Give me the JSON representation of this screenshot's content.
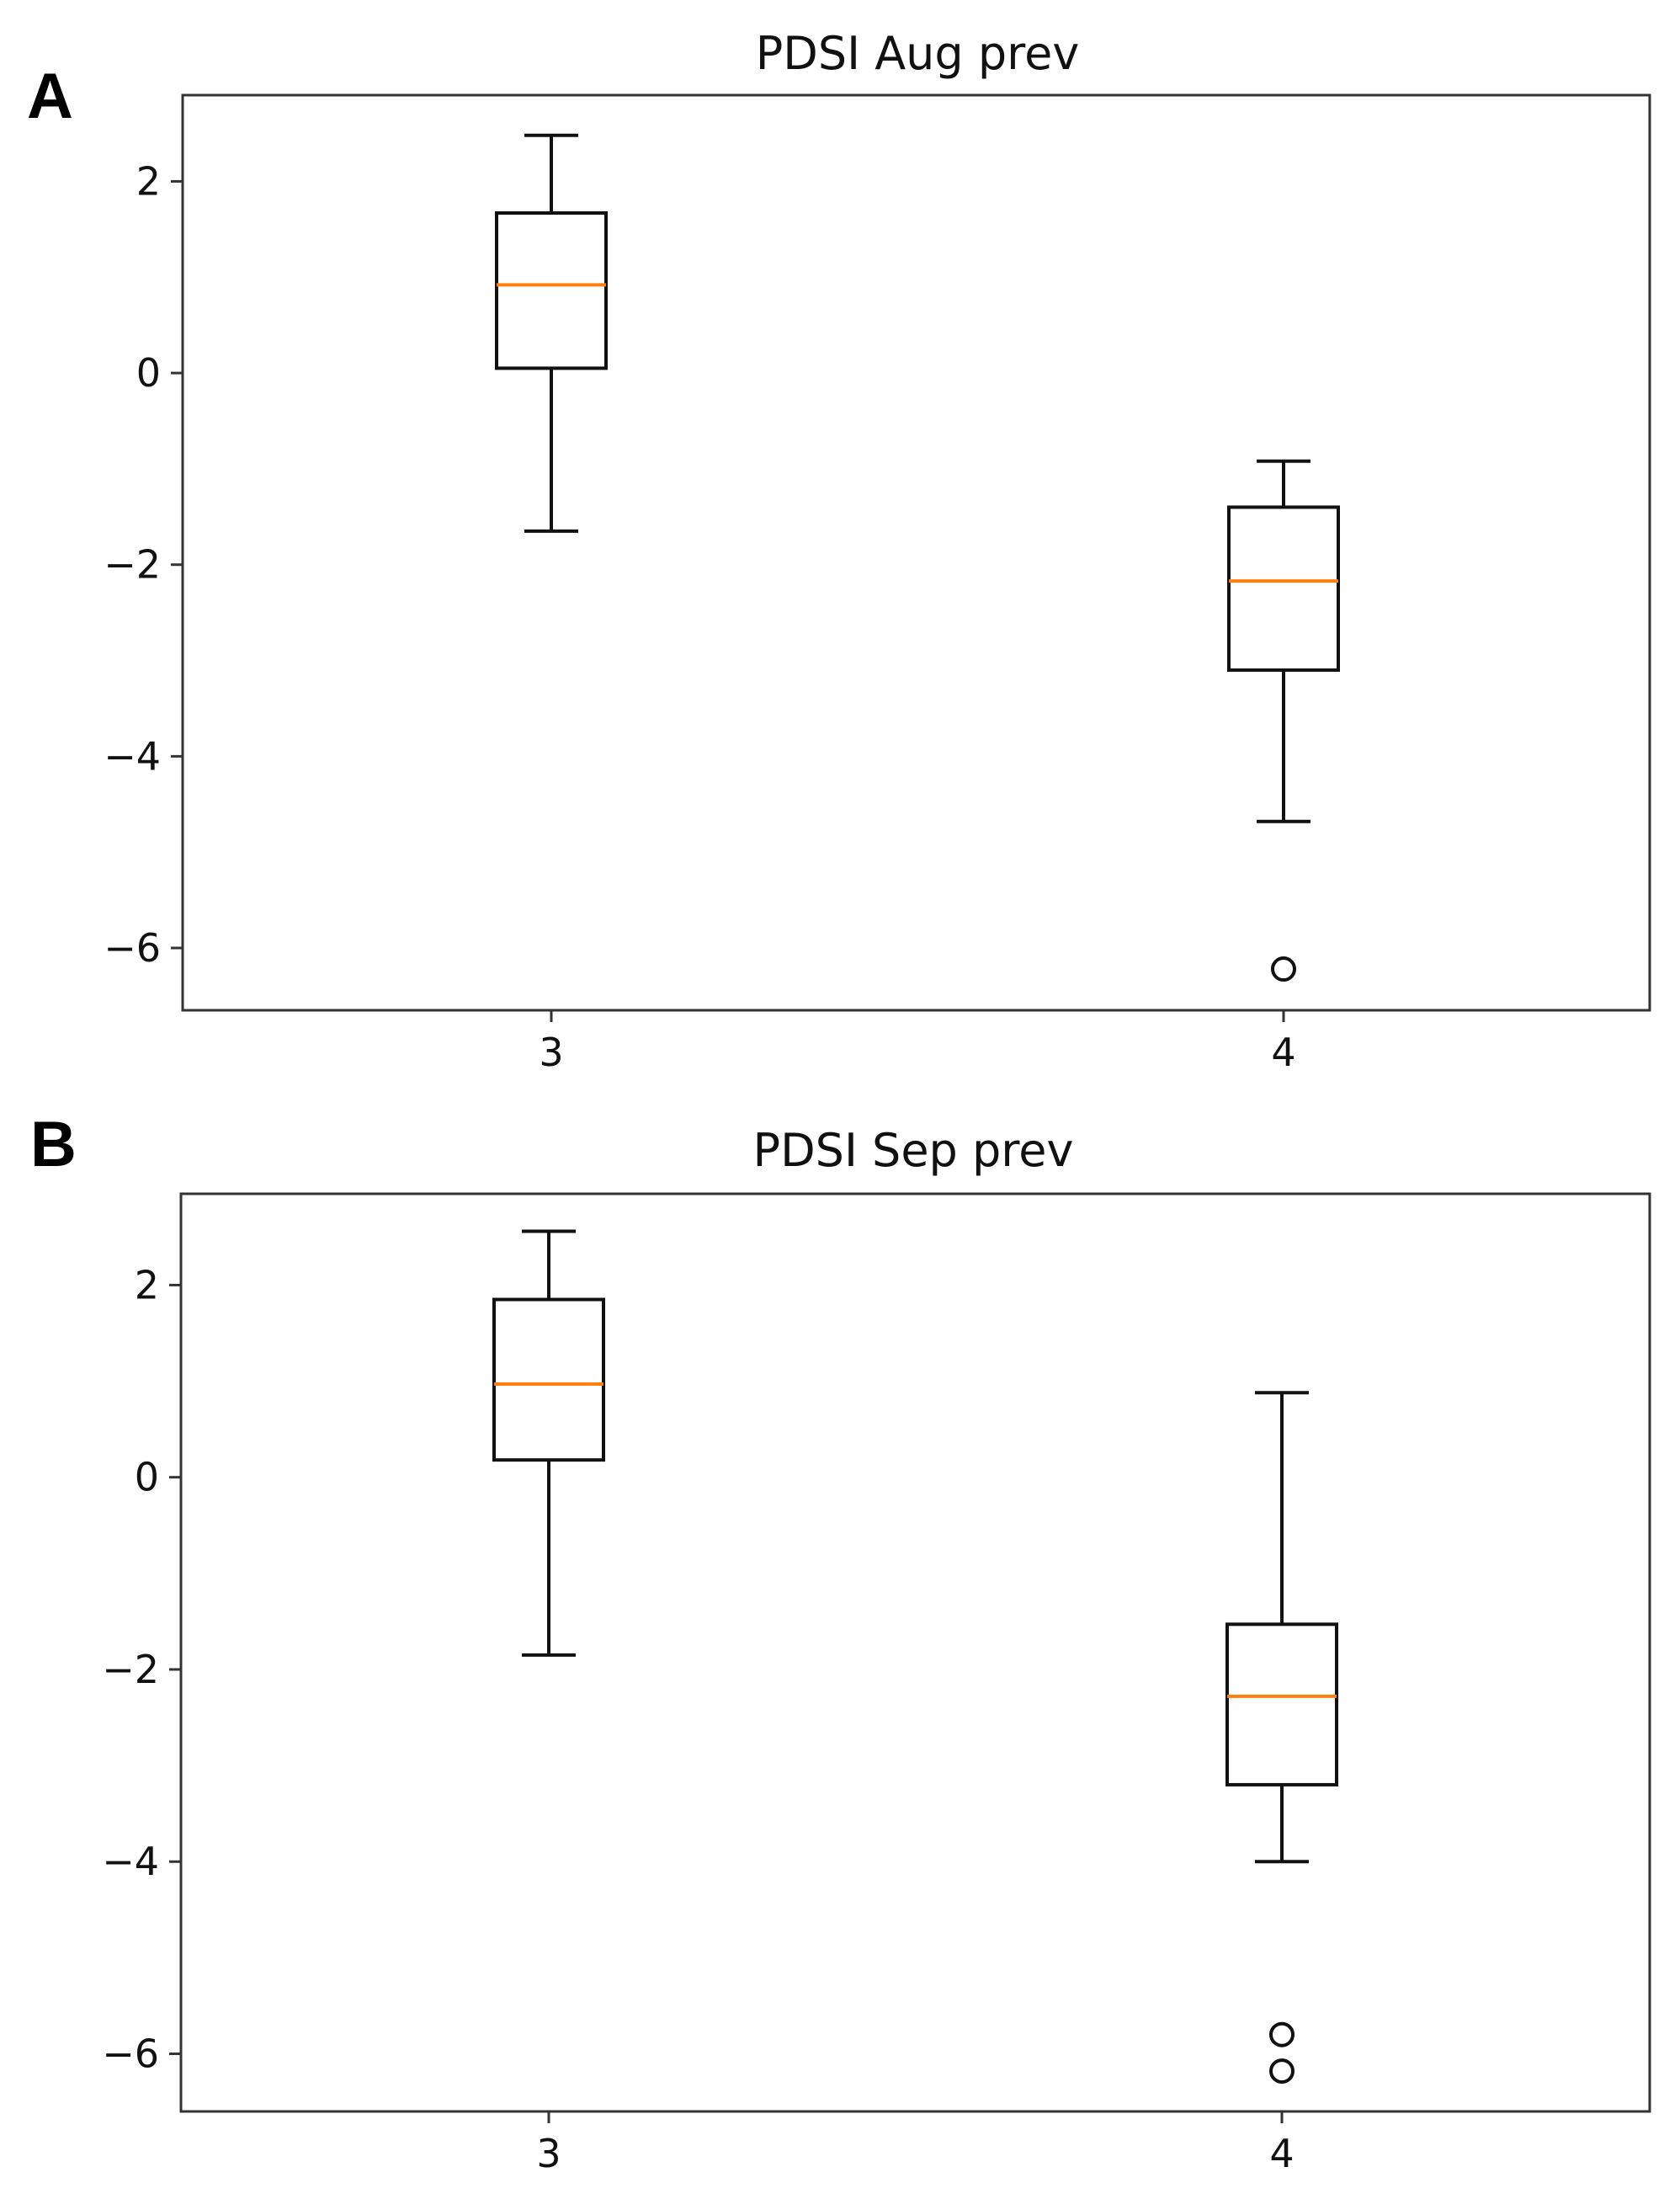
{
  "chart_data": [
    {
      "type": "box",
      "panel_label": "A",
      "title": "PDSI Aug prev",
      "categories": [
        "3",
        "4"
      ],
      "yticks": [
        "2",
        "0",
        "−2",
        "−4",
        "−6"
      ],
      "ytick_values": [
        2,
        0,
        -2,
        -4,
        -6
      ],
      "ylim": [
        -6.65,
        2.9
      ],
      "boxes": [
        {
          "category": "3",
          "whislo": -1.65,
          "q1": 0.05,
          "med": 0.92,
          "q3": 1.67,
          "whishi": 2.48,
          "fliers": []
        },
        {
          "category": "4",
          "whislo": -4.68,
          "q1": -3.1,
          "med": -2.17,
          "q3": -1.4,
          "whishi": -0.92,
          "fliers": [
            -6.22
          ]
        }
      ]
    },
    {
      "type": "box",
      "panel_label": "B",
      "title": "PDSI Sep prev",
      "categories": [
        "3",
        "4"
      ],
      "yticks": [
        "2",
        "0",
        "−2",
        "−4",
        "−6"
      ],
      "ytick_values": [
        2,
        0,
        -2,
        -4,
        -6
      ],
      "ylim": [
        -6.6,
        2.95
      ],
      "boxes": [
        {
          "category": "3",
          "whislo": -1.85,
          "q1": 0.18,
          "med": 0.97,
          "q3": 1.85,
          "whishi": 2.56,
          "fliers": []
        },
        {
          "category": "4",
          "whislo": -4.0,
          "q1": -3.2,
          "med": -2.28,
          "q3": -1.53,
          "whishi": 0.88,
          "fliers": [
            -5.8,
            -6.18
          ]
        }
      ]
    }
  ]
}
